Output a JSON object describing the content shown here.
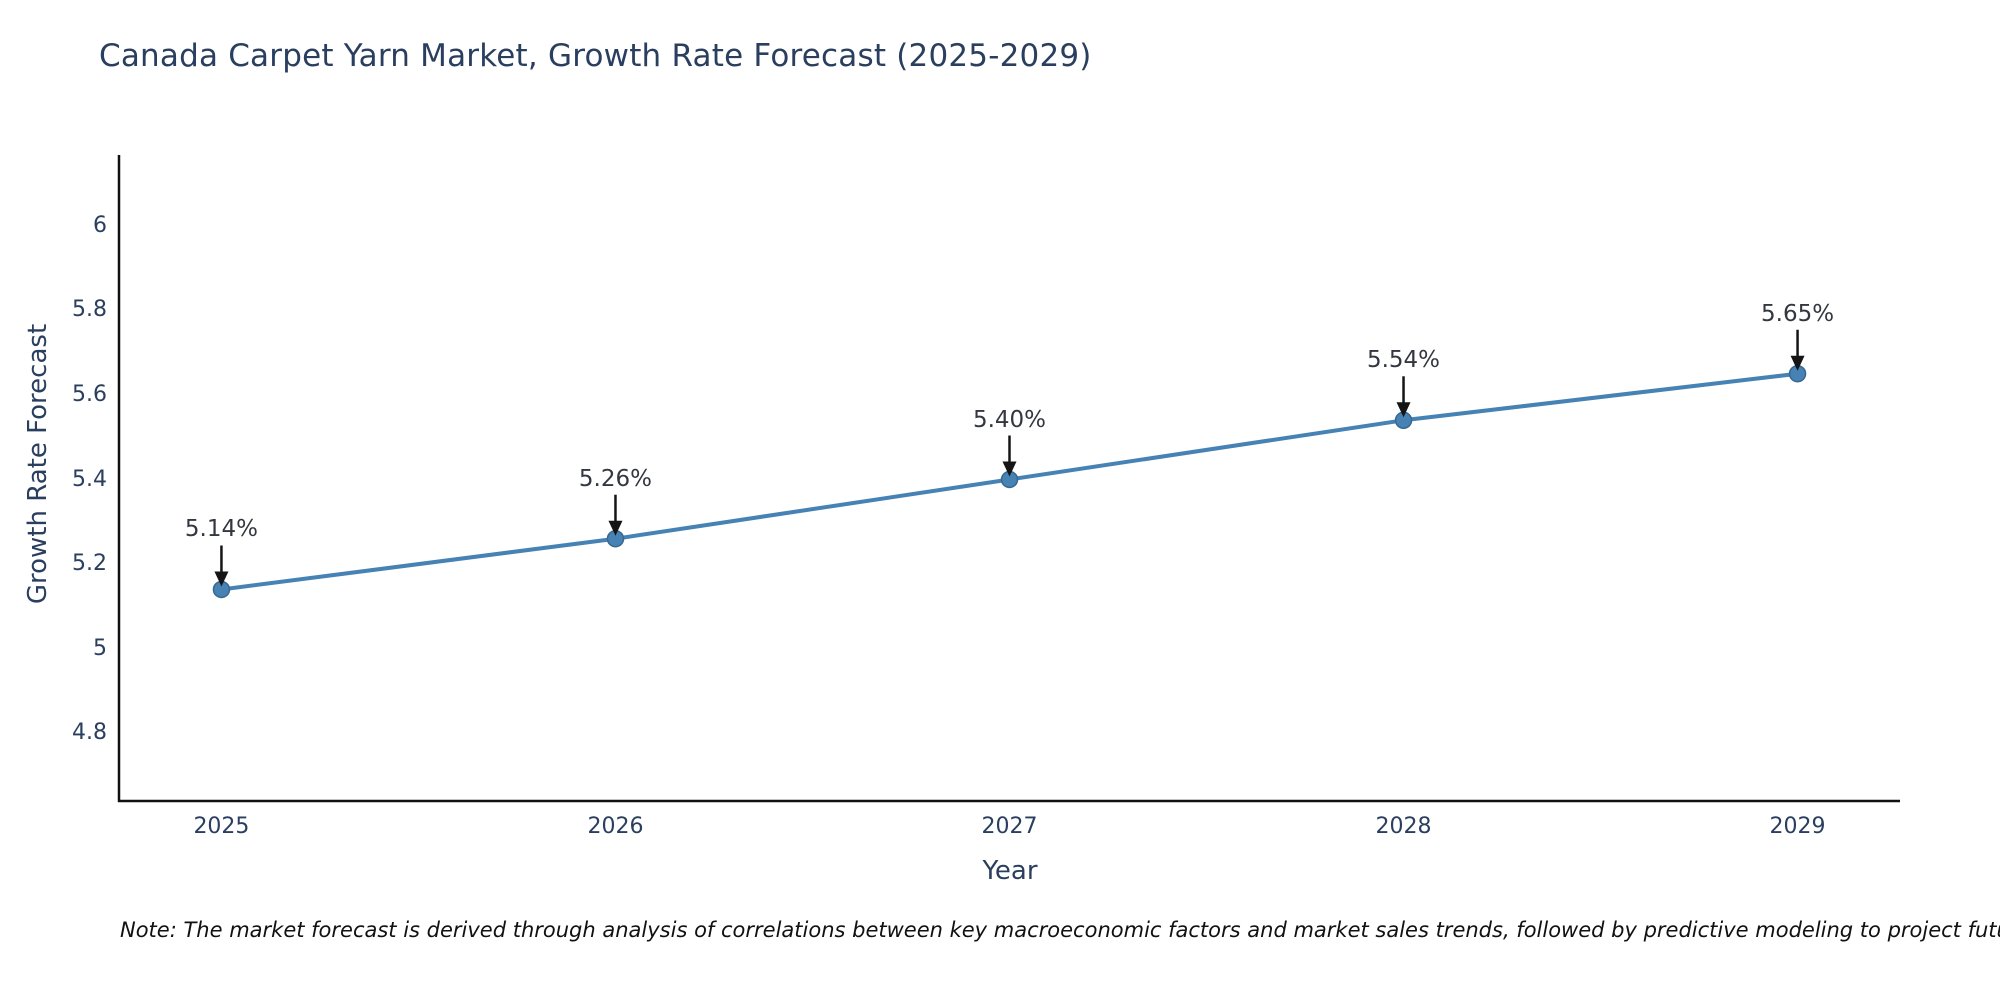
{
  "header": {
    "title": "Canada Carpet Yarn Market, Growth Rate Forecast (2025-2029)"
  },
  "colors": {
    "line": "#4682b4",
    "marker": "#4682b4",
    "marker_edge": "#38678f",
    "axis": "#111111",
    "arrow": "#151515",
    "text": "#2a3f5f",
    "label": "#333740",
    "note": "#111111",
    "background": "#ffffff"
  },
  "chart_data": {
    "type": "line",
    "title": "Canada Carpet Yarn Market, Growth Rate Forecast (2025-2029)",
    "categories": [
      "2025",
      "2026",
      "2027",
      "2028",
      "2029"
    ],
    "x": [
      2025,
      2026,
      2027,
      2028,
      2029
    ],
    "values": [
      5.14,
      5.26,
      5.4,
      5.54,
      5.65
    ],
    "point_labels": [
      "5.14%",
      "5.26%",
      "5.40%",
      "5.54%",
      "5.65%"
    ],
    "series": [
      {
        "name": "Growth Rate Forecast",
        "values": [
          5.14,
          5.26,
          5.4,
          5.54,
          5.65
        ]
      }
    ],
    "xlabel": "Year",
    "ylabel": "Growth Rate Forecast",
    "yticks": [
      4.8,
      5,
      5.2,
      5.4,
      5.6,
      5.8,
      6
    ],
    "ytick_labels": [
      "4.8",
      "5",
      "5.2",
      "5.4",
      "5.6",
      "5.8",
      "6"
    ],
    "ylim": [
      4.64,
      6.16
    ],
    "xlim": [
      2024.74,
      2029.26
    ],
    "grid": false,
    "legend": false,
    "annotations": "value labels with downward arrows above each point"
  },
  "footer": {
    "note": "Note: The market forecast is derived through analysis of correlations between key macroeconomic factors and market sales trends, followed by predictive modeling to project future sales"
  }
}
